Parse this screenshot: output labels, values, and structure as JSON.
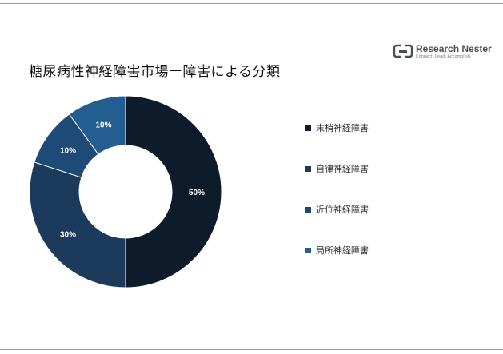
{
  "title": "糖尿病性神経障害市場ー障害による分類",
  "brand": {
    "name": "Research Nester",
    "tagline": "Connect. Lead. Accomplish"
  },
  "chart_data": {
    "type": "pie",
    "donut": true,
    "categories": [
      "末梢神経障害",
      "自律神経障害",
      "近位神経障害",
      "局所神経障害"
    ],
    "values": [
      50,
      30,
      10,
      10
    ],
    "value_labels": [
      "50%",
      "30%",
      "10%",
      "10%"
    ],
    "colors": [
      "#0d1b2a",
      "#1b3a5c",
      "#1e4a78",
      "#245d8f"
    ],
    "legend_position": "right"
  }
}
